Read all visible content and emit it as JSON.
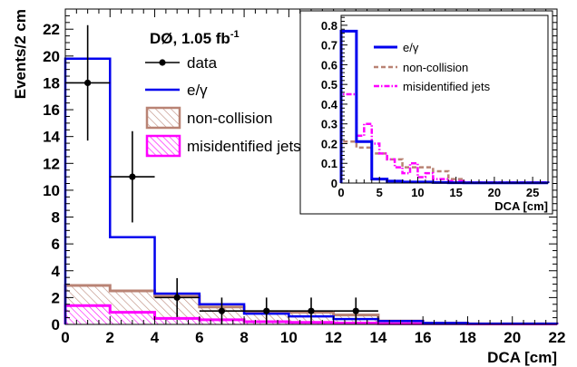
{
  "chart_data": [
    {
      "type": "histogram",
      "xlabel": "DCA [cm]",
      "ylabel": "Events/2 cm",
      "xlim": [
        0,
        22
      ],
      "ylim": [
        0,
        23.5
      ],
      "xticks": [
        0,
        2,
        4,
        6,
        8,
        10,
        12,
        14,
        16,
        18,
        20,
        22
      ],
      "yticks": [
        0,
        2,
        4,
        6,
        8,
        10,
        12,
        14,
        16,
        18,
        20,
        22
      ],
      "bin_edges": [
        0,
        2,
        4,
        6,
        8,
        10,
        12,
        14,
        16,
        18,
        20,
        22
      ],
      "legend": {
        "position": "top-center",
        "title_main": "DØ, 1.05 fb",
        "title_sup": "-1",
        "entries": [
          "data",
          "e/γ",
          "non-collision",
          "misidentified jets"
        ]
      },
      "series": [
        {
          "name": "e/γ",
          "style": "stacked-line",
          "color": "#0000ee",
          "values": [
            19.8,
            6.5,
            2.3,
            1.5,
            0.8,
            0.6,
            0.4,
            0.25,
            0.1,
            0.05,
            0.05
          ]
        },
        {
          "name": "non-collision",
          "style": "hatched-fill",
          "color": "#b98374",
          "values": [
            2.9,
            2.5,
            2.1,
            1.3,
            0.95,
            0.9,
            0.7,
            0.25,
            0.1,
            0.05,
            0.05
          ]
        },
        {
          "name": "misidentified jets",
          "style": "hatched-fill",
          "color": "#ff00ff",
          "values": [
            1.4,
            0.9,
            0.45,
            0.35,
            0.2,
            0.15,
            0.1,
            0.05,
            0.05,
            0.03,
            0.03
          ]
        }
      ],
      "data_points": {
        "name": "data",
        "x": [
          1,
          3,
          5,
          7,
          9,
          11,
          13
        ],
        "y": [
          18,
          11,
          2,
          1,
          1,
          1,
          1
        ],
        "err": [
          4.3,
          3.4,
          1.45,
          1.0,
          1.0,
          1.0,
          1.0
        ]
      }
    },
    {
      "type": "histogram",
      "role": "inset",
      "xlabel": "DCA [cm]",
      "ylabel": "",
      "xlim": [
        0,
        27
      ],
      "ylim": [
        0,
        0.85
      ],
      "xticks": [
        0,
        5,
        10,
        15,
        20,
        25
      ],
      "yticks": [
        0,
        0.1,
        0.2,
        0.3,
        0.4,
        0.5,
        0.6,
        0.7,
        0.8
      ],
      "legend": {
        "position": "top-center",
        "entries": [
          "e/γ",
          "non-collision",
          "misidentified jets"
        ]
      },
      "series": [
        {
          "name": "e/γ",
          "style": "solid",
          "color": "#0000ee",
          "edges": [
            0,
            2,
            4,
            6,
            8,
            10,
            12,
            14,
            16,
            27
          ],
          "values": [
            0.77,
            0.21,
            0.02,
            0.01,
            0.005,
            0.005,
            0.003,
            0.002,
            0.001
          ]
        },
        {
          "name": "non-collision",
          "style": "dashed",
          "color": "#b98374",
          "edges": [
            0,
            2,
            4,
            6,
            8,
            10,
            12,
            14,
            16,
            27
          ],
          "values": [
            0.21,
            0.18,
            0.15,
            0.12,
            0.08,
            0.08,
            0.06,
            0.02,
            0.003
          ]
        },
        {
          "name": "misidentified jets",
          "style": "dash-dot",
          "color": "#ff00ff",
          "edges": [
            0,
            2,
            3,
            4,
            5,
            6,
            7,
            8,
            9,
            10,
            11,
            12,
            14,
            16,
            27
          ],
          "values": [
            0.45,
            0.24,
            0.3,
            0.2,
            0.15,
            0.12,
            0.08,
            0.05,
            0.1,
            0.03,
            0.05,
            0.02,
            0.01,
            0.003
          ]
        }
      ]
    }
  ]
}
